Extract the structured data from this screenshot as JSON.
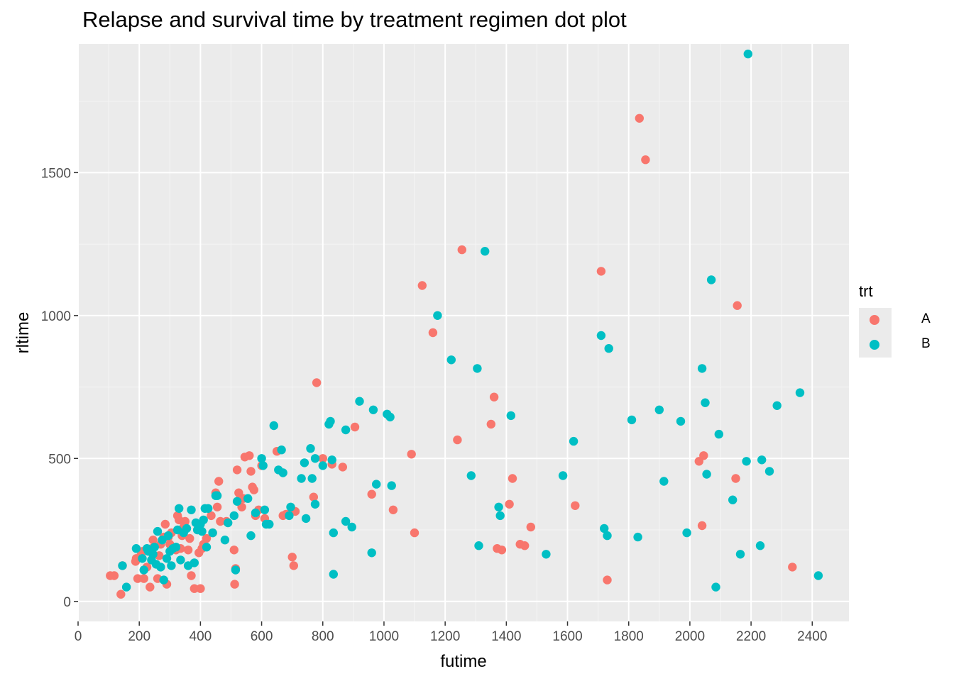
{
  "chart_data": {
    "type": "scatter",
    "title": "Relapse and survival time by treatment regimen dot plot",
    "xlabel": "futime",
    "ylabel": "rltime",
    "xlim": [
      0,
      2520
    ],
    "ylim": [
      -70,
      1950
    ],
    "x_ticks": [
      0,
      200,
      400,
      600,
      800,
      1000,
      1200,
      1400,
      1600,
      1800,
      2000,
      2200,
      2400
    ],
    "y_ticks": [
      0,
      500,
      1000,
      1500
    ],
    "grid": true,
    "legend": {
      "title": "trt",
      "position": "right"
    },
    "series": [
      {
        "name": "A",
        "color": "#F8766D",
        "points": [
          [
            105,
            90
          ],
          [
            118,
            90
          ],
          [
            140,
            25
          ],
          [
            145,
            125
          ],
          [
            188,
            140
          ],
          [
            190,
            150
          ],
          [
            195,
            80
          ],
          [
            205,
            160
          ],
          [
            210,
            175
          ],
          [
            215,
            80
          ],
          [
            225,
            120
          ],
          [
            235,
            50
          ],
          [
            240,
            185
          ],
          [
            245,
            215
          ],
          [
            260,
            80
          ],
          [
            265,
            160
          ],
          [
            270,
            200
          ],
          [
            280,
            225
          ],
          [
            285,
            270
          ],
          [
            290,
            60
          ],
          [
            295,
            225
          ],
          [
            300,
            200
          ],
          [
            305,
            240
          ],
          [
            320,
            180
          ],
          [
            325,
            300
          ],
          [
            330,
            285
          ],
          [
            335,
            185
          ],
          [
            340,
            230
          ],
          [
            345,
            260
          ],
          [
            350,
            280
          ],
          [
            360,
            180
          ],
          [
            365,
            220
          ],
          [
            370,
            90
          ],
          [
            380,
            45
          ],
          [
            395,
            170
          ],
          [
            400,
            45
          ],
          [
            405,
            185
          ],
          [
            410,
            200
          ],
          [
            420,
            220
          ],
          [
            435,
            300
          ],
          [
            440,
            240
          ],
          [
            450,
            380
          ],
          [
            455,
            330
          ],
          [
            460,
            420
          ],
          [
            465,
            280
          ],
          [
            485,
            280
          ],
          [
            510,
            180
          ],
          [
            512,
            60
          ],
          [
            515,
            115
          ],
          [
            520,
            460
          ],
          [
            525,
            380
          ],
          [
            530,
            360
          ],
          [
            535,
            330
          ],
          [
            540,
            360
          ],
          [
            545,
            505
          ],
          [
            560,
            510
          ],
          [
            565,
            455
          ],
          [
            570,
            400
          ],
          [
            575,
            390
          ],
          [
            580,
            300
          ],
          [
            590,
            320
          ],
          [
            600,
            475
          ],
          [
            610,
            290
          ],
          [
            650,
            525
          ],
          [
            670,
            300
          ],
          [
            680,
            305
          ],
          [
            700,
            155
          ],
          [
            705,
            125
          ],
          [
            710,
            315
          ],
          [
            770,
            365
          ],
          [
            780,
            765
          ],
          [
            800,
            500
          ],
          [
            830,
            480
          ],
          [
            865,
            470
          ],
          [
            905,
            610
          ],
          [
            960,
            375
          ],
          [
            1030,
            320
          ],
          [
            1090,
            515
          ],
          [
            1100,
            240
          ],
          [
            1125,
            1105
          ],
          [
            1160,
            940
          ],
          [
            1240,
            565
          ],
          [
            1255,
            1230
          ],
          [
            1350,
            620
          ],
          [
            1360,
            715
          ],
          [
            1370,
            185
          ],
          [
            1385,
            180
          ],
          [
            1410,
            340
          ],
          [
            1420,
            430
          ],
          [
            1445,
            200
          ],
          [
            1460,
            195
          ],
          [
            1480,
            260
          ],
          [
            1625,
            335
          ],
          [
            1710,
            1155
          ],
          [
            1730,
            75
          ],
          [
            1835,
            1690
          ],
          [
            1855,
            1545
          ],
          [
            2030,
            490
          ],
          [
            2040,
            265
          ],
          [
            2045,
            510
          ],
          [
            2150,
            430
          ],
          [
            2155,
            1035
          ],
          [
            2335,
            120
          ]
        ]
      },
      {
        "name": "B",
        "color": "#00BFC4",
        "points": [
          [
            145,
            125
          ],
          [
            158,
            50
          ],
          [
            190,
            185
          ],
          [
            210,
            150
          ],
          [
            215,
            110
          ],
          [
            225,
            185
          ],
          [
            230,
            175
          ],
          [
            240,
            145
          ],
          [
            245,
            165
          ],
          [
            250,
            190
          ],
          [
            255,
            130
          ],
          [
            260,
            245
          ],
          [
            270,
            120
          ],
          [
            275,
            215
          ],
          [
            280,
            75
          ],
          [
            290,
            150
          ],
          [
            295,
            230
          ],
          [
            300,
            175
          ],
          [
            305,
            125
          ],
          [
            310,
            185
          ],
          [
            320,
            190
          ],
          [
            325,
            250
          ],
          [
            330,
            325
          ],
          [
            335,
            145
          ],
          [
            345,
            240
          ],
          [
            355,
            255
          ],
          [
            360,
            125
          ],
          [
            370,
            320
          ],
          [
            380,
            135
          ],
          [
            385,
            275
          ],
          [
            390,
            250
          ],
          [
            400,
            270
          ],
          [
            405,
            245
          ],
          [
            410,
            285
          ],
          [
            415,
            325
          ],
          [
            420,
            190
          ],
          [
            425,
            325
          ],
          [
            440,
            240
          ],
          [
            450,
            370
          ],
          [
            455,
            370
          ],
          [
            480,
            215
          ],
          [
            490,
            275
          ],
          [
            510,
            300
          ],
          [
            515,
            110
          ],
          [
            520,
            350
          ],
          [
            555,
            360
          ],
          [
            565,
            230
          ],
          [
            580,
            310
          ],
          [
            600,
            500
          ],
          [
            605,
            475
          ],
          [
            610,
            320
          ],
          [
            615,
            270
          ],
          [
            625,
            270
          ],
          [
            640,
            615
          ],
          [
            655,
            460
          ],
          [
            665,
            530
          ],
          [
            670,
            450
          ],
          [
            690,
            300
          ],
          [
            695,
            330
          ],
          [
            730,
            430
          ],
          [
            740,
            485
          ],
          [
            745,
            290
          ],
          [
            760,
            535
          ],
          [
            765,
            430
          ],
          [
            775,
            500
          ],
          [
            775,
            340
          ],
          [
            800,
            475
          ],
          [
            820,
            620
          ],
          [
            825,
            630
          ],
          [
            830,
            495
          ],
          [
            835,
            240
          ],
          [
            835,
            95
          ],
          [
            875,
            600
          ],
          [
            875,
            280
          ],
          [
            895,
            260
          ],
          [
            920,
            700
          ],
          [
            960,
            170
          ],
          [
            965,
            670
          ],
          [
            975,
            410
          ],
          [
            1010,
            655
          ],
          [
            1020,
            645
          ],
          [
            1025,
            405
          ],
          [
            1175,
            1000
          ],
          [
            1220,
            845
          ],
          [
            1285,
            440
          ],
          [
            1305,
            815
          ],
          [
            1310,
            195
          ],
          [
            1330,
            1225
          ],
          [
            1375,
            330
          ],
          [
            1380,
            300
          ],
          [
            1415,
            650
          ],
          [
            1530,
            165
          ],
          [
            1585,
            440
          ],
          [
            1620,
            560
          ],
          [
            1710,
            930
          ],
          [
            1720,
            255
          ],
          [
            1730,
            230
          ],
          [
            1735,
            885
          ],
          [
            1810,
            635
          ],
          [
            1830,
            225
          ],
          [
            1900,
            670
          ],
          [
            1915,
            420
          ],
          [
            1970,
            630
          ],
          [
            1990,
            240
          ],
          [
            2040,
            815
          ],
          [
            2050,
            695
          ],
          [
            2055,
            445
          ],
          [
            2070,
            1125
          ],
          [
            2085,
            50
          ],
          [
            2095,
            585
          ],
          [
            2140,
            355
          ],
          [
            2165,
            165
          ],
          [
            2185,
            490
          ],
          [
            2190,
            1915
          ],
          [
            2230,
            195
          ],
          [
            2235,
            495
          ],
          [
            2260,
            455
          ],
          [
            2285,
            685
          ],
          [
            2360,
            730
          ],
          [
            2420,
            90
          ]
        ]
      }
    ]
  }
}
